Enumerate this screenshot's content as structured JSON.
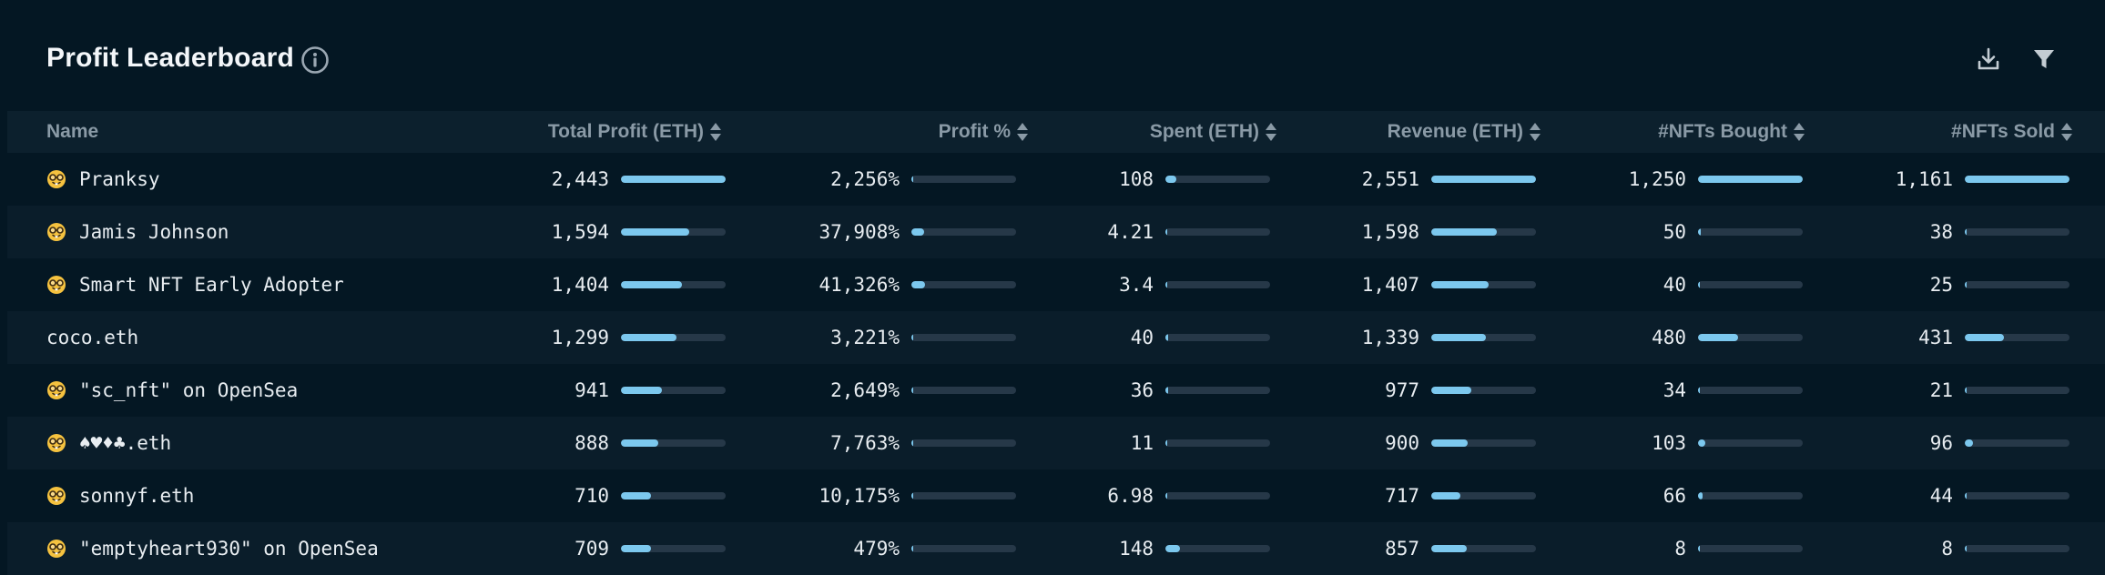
{
  "header": {
    "title": "Profit Leaderboard",
    "info_icon": "info-circle-icon",
    "download_icon": "download-icon",
    "filter_icon": "filter-icon"
  },
  "columns": [
    {
      "key": "name",
      "label": "Name"
    },
    {
      "key": "profit",
      "label": "Total Profit (ETH)"
    },
    {
      "key": "profit_pct",
      "label": "Profit %"
    },
    {
      "key": "spent",
      "label": "Spent (ETH)"
    },
    {
      "key": "revenue",
      "label": "Revenue (ETH)"
    },
    {
      "key": "bought",
      "label": "#NFTs Bought"
    },
    {
      "key": "sold",
      "label": "#NFTs Sold"
    }
  ],
  "colors": {
    "background": "#041723",
    "header_row": "#0c202d",
    "bar_track": "#263848",
    "bar_fill": "#7cc8ee"
  },
  "rows": [
    {
      "name": "Pranksy",
      "emoji": true,
      "profit": "2,443",
      "profit_frac": 1.0,
      "profit_pct": "2,256%",
      "profit_pct_frac": 0.0,
      "spent": "108",
      "spent_frac": 0.1,
      "revenue": "2,551",
      "revenue_frac": 1.0,
      "bought": "1,250",
      "bought_frac": 1.0,
      "sold": "1,161",
      "sold_frac": 1.0
    },
    {
      "name": "Jamis Johnson",
      "emoji": true,
      "profit": "1,594",
      "profit_frac": 0.65,
      "profit_pct": "37,908%",
      "profit_pct_frac": 0.12,
      "spent": "4.21",
      "spent_frac": 0.0,
      "revenue": "1,598",
      "revenue_frac": 0.63,
      "bought": "50",
      "bought_frac": 0.03,
      "sold": "38",
      "sold_frac": 0.02
    },
    {
      "name": "Smart NFT Early Adopter",
      "emoji": true,
      "profit": "1,404",
      "profit_frac": 0.58,
      "profit_pct": "41,326%",
      "profit_pct_frac": 0.13,
      "spent": "3.4",
      "spent_frac": 0.0,
      "revenue": "1,407",
      "revenue_frac": 0.55,
      "bought": "40",
      "bought_frac": 0.02,
      "sold": "25",
      "sold_frac": 0.01
    },
    {
      "name": "coco.eth",
      "emoji": false,
      "profit": "1,299",
      "profit_frac": 0.53,
      "profit_pct": "3,221%",
      "profit_pct_frac": 0.0,
      "spent": "40",
      "spent_frac": 0.03,
      "revenue": "1,339",
      "revenue_frac": 0.52,
      "bought": "480",
      "bought_frac": 0.38,
      "sold": "431",
      "sold_frac": 0.37
    },
    {
      "name": "\"sc_nft\" on OpenSea",
      "emoji": true,
      "profit": "941",
      "profit_frac": 0.39,
      "profit_pct": "2,649%",
      "profit_pct_frac": 0.0,
      "spent": "36",
      "spent_frac": 0.03,
      "revenue": "977",
      "revenue_frac": 0.38,
      "bought": "34",
      "bought_frac": 0.02,
      "sold": "21",
      "sold_frac": 0.01
    },
    {
      "name": "♠♥♦♣.eth",
      "emoji": true,
      "profit": "888",
      "profit_frac": 0.36,
      "profit_pct": "7,763%",
      "profit_pct_frac": 0.02,
      "spent": "11",
      "spent_frac": 0.01,
      "revenue": "900",
      "revenue_frac": 0.35,
      "bought": "103",
      "bought_frac": 0.07,
      "sold": "96",
      "sold_frac": 0.08
    },
    {
      "name": "sonnyf.eth",
      "emoji": true,
      "profit": "710",
      "profit_frac": 0.29,
      "profit_pct": "10,175%",
      "profit_pct_frac": 0.02,
      "spent": "6.98",
      "spent_frac": 0.0,
      "revenue": "717",
      "revenue_frac": 0.28,
      "bought": "66",
      "bought_frac": 0.04,
      "sold": "44",
      "sold_frac": 0.02
    },
    {
      "name": "\"emptyheart930\" on OpenSea",
      "emoji": true,
      "profit": "709",
      "profit_frac": 0.29,
      "profit_pct": "479%",
      "profit_pct_frac": 0.0,
      "spent": "148",
      "spent_frac": 0.14,
      "revenue": "857",
      "revenue_frac": 0.34,
      "bought": "8",
      "bought_frac": 0.0,
      "sold": "8",
      "sold_frac": 0.0
    }
  ]
}
